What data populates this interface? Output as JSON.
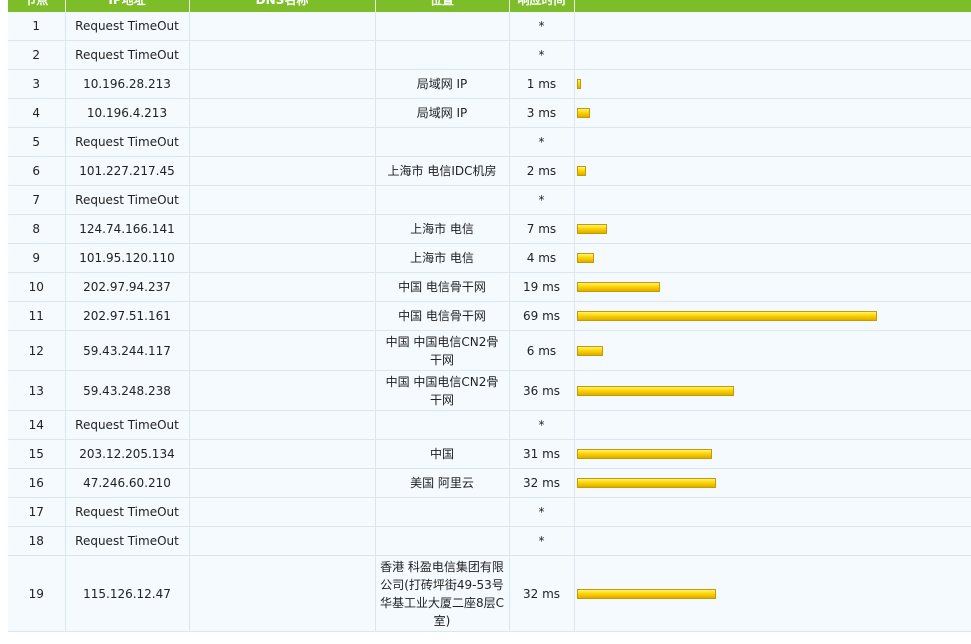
{
  "columns": [
    "节点",
    "IP地址",
    "DNS名称",
    "位置",
    "响应时间",
    ""
  ],
  "colors": {
    "header": "#7dbd2a",
    "row": "#f5fafe",
    "bar": "#ffd400"
  },
  "max_time_ms": 69,
  "hops": [
    {
      "hop": "1",
      "ip": "Request TimeOut",
      "host": "",
      "location": "",
      "time": "*",
      "ms": null
    },
    {
      "hop": "2",
      "ip": "Request TimeOut",
      "host": "",
      "location": "",
      "time": "*",
      "ms": null
    },
    {
      "hop": "3",
      "ip": "10.196.28.213",
      "host": "",
      "location": "局域网 IP",
      "time": "1 ms",
      "ms": 1
    },
    {
      "hop": "4",
      "ip": "10.196.4.213",
      "host": "",
      "location": "局域网 IP",
      "time": "3 ms",
      "ms": 3
    },
    {
      "hop": "5",
      "ip": "Request TimeOut",
      "host": "",
      "location": "",
      "time": "*",
      "ms": null
    },
    {
      "hop": "6",
      "ip": "101.227.217.45",
      "host": "",
      "location": "上海市 电信IDC机房",
      "time": "2 ms",
      "ms": 2
    },
    {
      "hop": "7",
      "ip": "Request TimeOut",
      "host": "",
      "location": "",
      "time": "*",
      "ms": null
    },
    {
      "hop": "8",
      "ip": "124.74.166.141",
      "host": "",
      "location": "上海市 电信",
      "time": "7 ms",
      "ms": 7
    },
    {
      "hop": "9",
      "ip": "101.95.120.110",
      "host": "",
      "location": "上海市 电信",
      "time": "4 ms",
      "ms": 4
    },
    {
      "hop": "10",
      "ip": "202.97.94.237",
      "host": "",
      "location": "中国 电信骨干网",
      "time": "19 ms",
      "ms": 19
    },
    {
      "hop": "11",
      "ip": "202.97.51.161",
      "host": "",
      "location": "中国 电信骨干网",
      "time": "69 ms",
      "ms": 69
    },
    {
      "hop": "12",
      "ip": "59.43.244.117",
      "host": "",
      "location": "中国 中国电信CN2骨干网",
      "time": "6 ms",
      "ms": 6
    },
    {
      "hop": "13",
      "ip": "59.43.248.238",
      "host": "",
      "location": "中国 中国电信CN2骨干网",
      "time": "36 ms",
      "ms": 36
    },
    {
      "hop": "14",
      "ip": "Request TimeOut",
      "host": "",
      "location": "",
      "time": "*",
      "ms": null
    },
    {
      "hop": "15",
      "ip": "203.12.205.134",
      "host": "",
      "location": "中国",
      "time": "31 ms",
      "ms": 31
    },
    {
      "hop": "16",
      "ip": "47.246.60.210",
      "host": "",
      "location": "美国 阿里云",
      "time": "32 ms",
      "ms": 32
    },
    {
      "hop": "17",
      "ip": "Request TimeOut",
      "host": "",
      "location": "",
      "time": "*",
      "ms": null
    },
    {
      "hop": "18",
      "ip": "Request TimeOut",
      "host": "",
      "location": "",
      "time": "*",
      "ms": null
    },
    {
      "hop": "19",
      "ip": "115.126.12.47",
      "host": "",
      "location": "香港 科盈电信集团有限公司(打砖坪街49-53号华基工业大厦二座8层C室)",
      "time": "32 ms",
      "ms": 32
    }
  ]
}
